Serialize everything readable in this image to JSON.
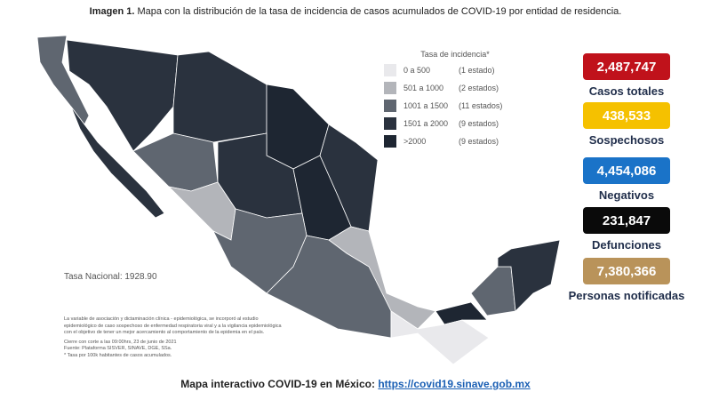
{
  "header": {
    "label": "Imagen 1.",
    "title": "Mapa con la distribución de la tasa de incidencia de casos acumulados de COVID-19 por entidad de residencia."
  },
  "legend": {
    "title": "Tasa de incidencia*",
    "items": [
      {
        "range": "0 a 500",
        "count": "(1 estado)",
        "color": "#e9e9ec"
      },
      {
        "range": "501 a 1000",
        "count": "(2 estados)",
        "color": "#b3b5ba"
      },
      {
        "range": "1001 a 1500",
        "count": "(11 estados)",
        "color": "#5f6670"
      },
      {
        "range": "1501 a 2000",
        "count": "(9 estados)",
        "color": "#2a323e"
      },
      {
        "range": ">2000",
        "count": "(9 estados)",
        "color": "#1e2632"
      }
    ]
  },
  "national_rate": "Tasa Nacional: 1928.90",
  "notes": [
    "La variable de asociación y dictaminación clínica - epidemiológica, se incorporó al estudio",
    "epidemiológico de caso sospechoso de enfermedad respiratoria viral y a la vigilancia epidemiológica",
    "con el objetivo de tener un mejor acercamiento al comportamiento de la epidemia en el país.",
    "Cierre con corte a las 09:00hrs, 23 de junio de 2021",
    "Fuente: Plataforma SISVER, SINAVE, DGE, SSa.",
    "* Tasa por 100k habitantes de casos acumulados."
  ],
  "stats": [
    {
      "value": "2,487,747",
      "label": "Casos totales",
      "color": "#c0121b"
    },
    {
      "value": "438,533",
      "label": "Sospechosos",
      "color": "#f5c100"
    },
    {
      "value": "4,454,086",
      "label": "Negativos",
      "color": "#1a73c8"
    },
    {
      "value": "231,847",
      "label": "Defunciones",
      "color": "#0a0a0a"
    },
    {
      "value": "7,380,366",
      "label": "Personas notificadas",
      "color": "#b9935a"
    }
  ],
  "footer": {
    "text": "Mapa interactivo COVID-19 en México:",
    "link": "https://covid19.sinave.gob.mx"
  }
}
